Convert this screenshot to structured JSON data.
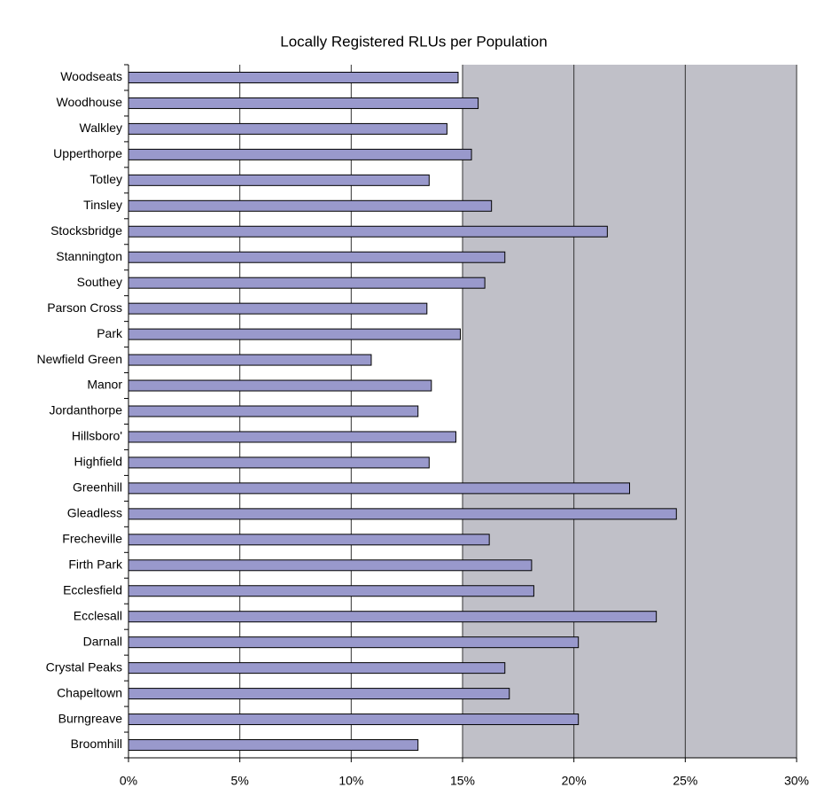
{
  "chart_data": {
    "type": "barh",
    "title": "Locally Registered RLUs per Population",
    "categories": [
      "Woodseats",
      "Woodhouse",
      "Walkley",
      "Upperthorpe",
      "Totley",
      "Tinsley",
      "Stocksbridge",
      "Stannington",
      "Southey",
      "Parson Cross",
      "Park",
      "Newfield Green",
      "Manor",
      "Jordanthorpe",
      "Hillsboro'",
      "Highfield",
      "Greenhill",
      "Gleadless",
      "Frecheville",
      "Firth Park",
      "Ecclesfield",
      "Ecclesall",
      "Darnall",
      "Crystal Peaks",
      "Chapeltown",
      "Burngreave",
      "Broomhill"
    ],
    "values": [
      14.8,
      15.7,
      14.3,
      15.4,
      13.5,
      16.3,
      21.5,
      16.9,
      16.0,
      13.4,
      14.9,
      10.9,
      13.6,
      13.0,
      14.7,
      13.5,
      22.5,
      24.6,
      16.2,
      18.1,
      18.2,
      23.7,
      20.2,
      16.9,
      17.1,
      20.2,
      13.0
    ],
    "color": "#9999cc",
    "xlim": [
      0,
      30
    ],
    "xticks": [
      {
        "value": 0,
        "label": "0%"
      },
      {
        "value": 5,
        "label": "5%"
      },
      {
        "value": 10,
        "label": "10%"
      },
      {
        "value": 15,
        "label": "15%"
      },
      {
        "value": 20,
        "label": "20%"
      },
      {
        "value": 25,
        "label": "25%"
      },
      {
        "value": 30,
        "label": "30%"
      }
    ],
    "grid": true
  }
}
